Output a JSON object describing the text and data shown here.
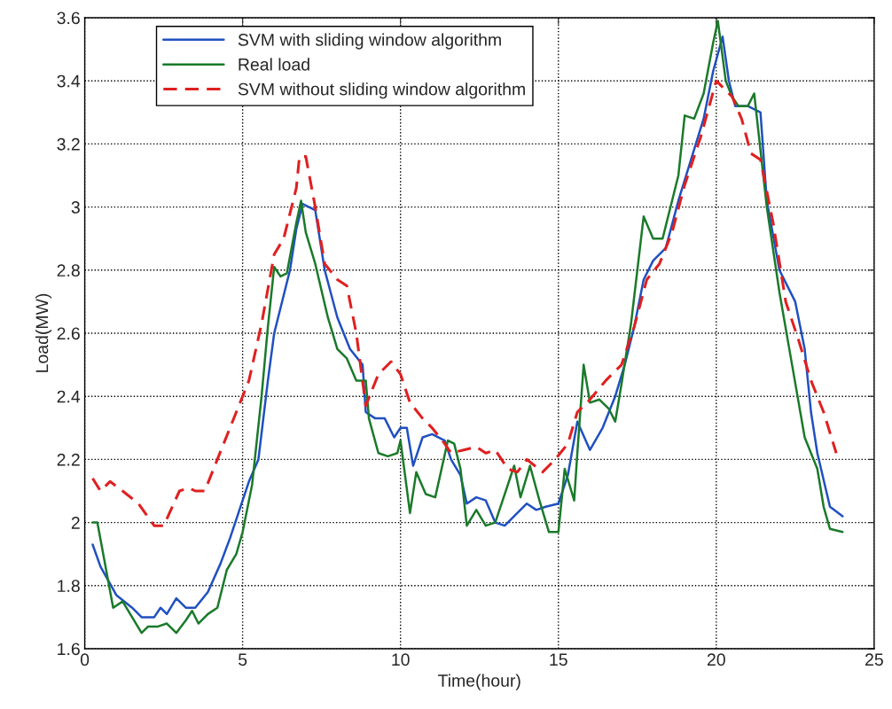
{
  "chart_data": {
    "type": "line",
    "xlabel": "Time(hour)",
    "ylabel": "Load(MW)",
    "xlim": [
      0,
      25
    ],
    "xticks": [
      0,
      5,
      10,
      15,
      20,
      25
    ],
    "ylim": [
      1.6,
      3.6
    ],
    "yticks": [
      1.6,
      1.8,
      2,
      2.2,
      2.4,
      2.6,
      2.8,
      3,
      3.2,
      3.4,
      3.6
    ],
    "grid": true,
    "legend": "top left",
    "series": [
      {
        "name": "SVM with sliding window algorithm",
        "color": "#2050c0",
        "line_style": "solid",
        "x": [
          0.25,
          0.5,
          1.0,
          1.5,
          1.8,
          2.2,
          2.4,
          2.6,
          2.9,
          3.2,
          3.5,
          3.9,
          4.3,
          4.6,
          5.0,
          5.2,
          5.5,
          5.8,
          6.0,
          6.2,
          6.5,
          6.7,
          6.9,
          7.1,
          7.3,
          7.6,
          8.0,
          8.4,
          8.8,
          8.9,
          9.2,
          9.5,
          9.8,
          10.0,
          10.2,
          10.4,
          10.7,
          11.0,
          11.4,
          11.6,
          11.9,
          12.1,
          12.4,
          12.7,
          13.0,
          13.3,
          13.6,
          14.0,
          14.3,
          14.6,
          15.0,
          15.3,
          15.6,
          16.0,
          16.4,
          16.8,
          17.1,
          17.4,
          17.7,
          18.0,
          18.4,
          18.8,
          19.2,
          19.6,
          19.9,
          20.2,
          20.4,
          20.6,
          21.0,
          21.4,
          21.6,
          22.0,
          22.5,
          22.8,
          23.0,
          23.2,
          23.6,
          24.0
        ],
        "values": [
          1.93,
          1.86,
          1.77,
          1.73,
          1.7,
          1.7,
          1.73,
          1.71,
          1.76,
          1.73,
          1.73,
          1.78,
          1.87,
          1.95,
          2.07,
          2.13,
          2.2,
          2.45,
          2.6,
          2.68,
          2.8,
          2.93,
          3.01,
          3.0,
          2.99,
          2.8,
          2.65,
          2.55,
          2.5,
          2.35,
          2.33,
          2.33,
          2.27,
          2.3,
          2.3,
          2.18,
          2.27,
          2.28,
          2.26,
          2.2,
          2.15,
          2.06,
          2.08,
          2.07,
          2.0,
          1.99,
          2.02,
          2.06,
          2.04,
          2.05,
          2.06,
          2.15,
          2.32,
          2.23,
          2.3,
          2.4,
          2.5,
          2.62,
          2.77,
          2.83,
          2.87,
          3.02,
          3.15,
          3.28,
          3.43,
          3.54,
          3.4,
          3.32,
          3.32,
          3.3,
          3.02,
          2.8,
          2.7,
          2.55,
          2.35,
          2.22,
          2.05,
          2.02
        ]
      },
      {
        "name": "Real load",
        "color": "#1a7a2a",
        "line_style": "solid",
        "x": [
          0.25,
          0.4,
          0.9,
          1.2,
          1.5,
          1.8,
          2.0,
          2.3,
          2.6,
          2.9,
          3.2,
          3.4,
          3.6,
          3.9,
          4.2,
          4.5,
          4.8,
          5.0,
          5.3,
          5.6,
          5.8,
          6.0,
          6.2,
          6.4,
          6.7,
          6.85,
          7.0,
          7.3,
          7.7,
          8.0,
          8.3,
          8.6,
          8.9,
          9.0,
          9.3,
          9.6,
          9.9,
          10.0,
          10.3,
          10.5,
          10.8,
          11.1,
          11.5,
          11.7,
          11.9,
          12.1,
          12.4,
          12.7,
          13.0,
          13.3,
          13.6,
          13.8,
          14.1,
          14.4,
          14.7,
          15.0,
          15.2,
          15.5,
          15.6,
          15.8,
          16.0,
          16.3,
          16.6,
          16.8,
          17.0,
          17.3,
          17.7,
          18.0,
          18.3,
          18.6,
          18.8,
          19.0,
          19.3,
          19.6,
          19.9,
          20.05,
          20.3,
          20.5,
          20.7,
          21.0,
          21.2,
          21.6,
          22.0,
          22.4,
          22.8,
          23.2,
          23.4,
          23.6,
          24.0
        ],
        "values": [
          2.0,
          2.0,
          1.73,
          1.75,
          1.7,
          1.65,
          1.67,
          1.67,
          1.68,
          1.65,
          1.69,
          1.72,
          1.68,
          1.71,
          1.73,
          1.85,
          1.9,
          1.97,
          2.12,
          2.4,
          2.62,
          2.81,
          2.78,
          2.79,
          2.95,
          3.02,
          2.92,
          2.82,
          2.65,
          2.55,
          2.52,
          2.45,
          2.45,
          2.33,
          2.22,
          2.21,
          2.22,
          2.26,
          2.03,
          2.16,
          2.09,
          2.08,
          2.26,
          2.25,
          2.17,
          1.99,
          2.04,
          1.99,
          2.0,
          2.09,
          2.18,
          2.08,
          2.18,
          2.07,
          1.97,
          1.97,
          2.17,
          2.07,
          2.22,
          2.5,
          2.38,
          2.39,
          2.36,
          2.32,
          2.44,
          2.63,
          2.97,
          2.9,
          2.9,
          3.02,
          3.1,
          3.29,
          3.28,
          3.36,
          3.52,
          3.59,
          3.4,
          3.35,
          3.32,
          3.32,
          3.36,
          3.0,
          2.73,
          2.5,
          2.27,
          2.17,
          2.05,
          1.98,
          1.97
        ]
      },
      {
        "name": "SVM without sliding window algorithm",
        "color": "#e02020",
        "line_style": "dashed",
        "x": [
          0.25,
          0.5,
          0.8,
          1.2,
          1.7,
          2.2,
          2.5,
          3.0,
          3.3,
          3.5,
          3.8,
          4.2,
          4.6,
          5.2,
          5.6,
          6.0,
          6.3,
          6.7,
          6.8,
          7.0,
          7.3,
          7.6,
          8.0,
          8.3,
          8.6,
          8.9,
          9.3,
          9.7,
          10.0,
          10.3,
          10.7,
          11.0,
          11.4,
          11.6,
          12.0,
          12.4,
          12.7,
          13.0,
          13.4,
          13.7,
          14.0,
          14.5,
          14.9,
          15.3,
          15.6,
          16.0,
          16.5,
          17.0,
          17.4,
          17.8,
          18.2,
          18.6,
          19.0,
          19.5,
          20.0,
          20.5,
          20.8,
          21.1,
          21.4,
          21.8,
          22.2,
          22.6,
          23.0,
          23.4,
          23.8
        ],
        "values": [
          2.14,
          2.1,
          2.13,
          2.1,
          2.06,
          1.99,
          1.99,
          2.1,
          2.11,
          2.1,
          2.1,
          2.2,
          2.3,
          2.45,
          2.63,
          2.85,
          2.9,
          3.06,
          3.16,
          3.16,
          3.0,
          2.82,
          2.77,
          2.75,
          2.6,
          2.37,
          2.47,
          2.51,
          2.47,
          2.38,
          2.33,
          2.3,
          2.25,
          2.22,
          2.23,
          2.24,
          2.22,
          2.23,
          2.17,
          2.16,
          2.2,
          2.16,
          2.2,
          2.25,
          2.35,
          2.39,
          2.45,
          2.5,
          2.62,
          2.77,
          2.82,
          2.92,
          3.07,
          3.22,
          3.4,
          3.35,
          3.28,
          3.17,
          3.15,
          2.95,
          2.7,
          2.58,
          2.45,
          2.35,
          2.22
        ]
      }
    ]
  }
}
